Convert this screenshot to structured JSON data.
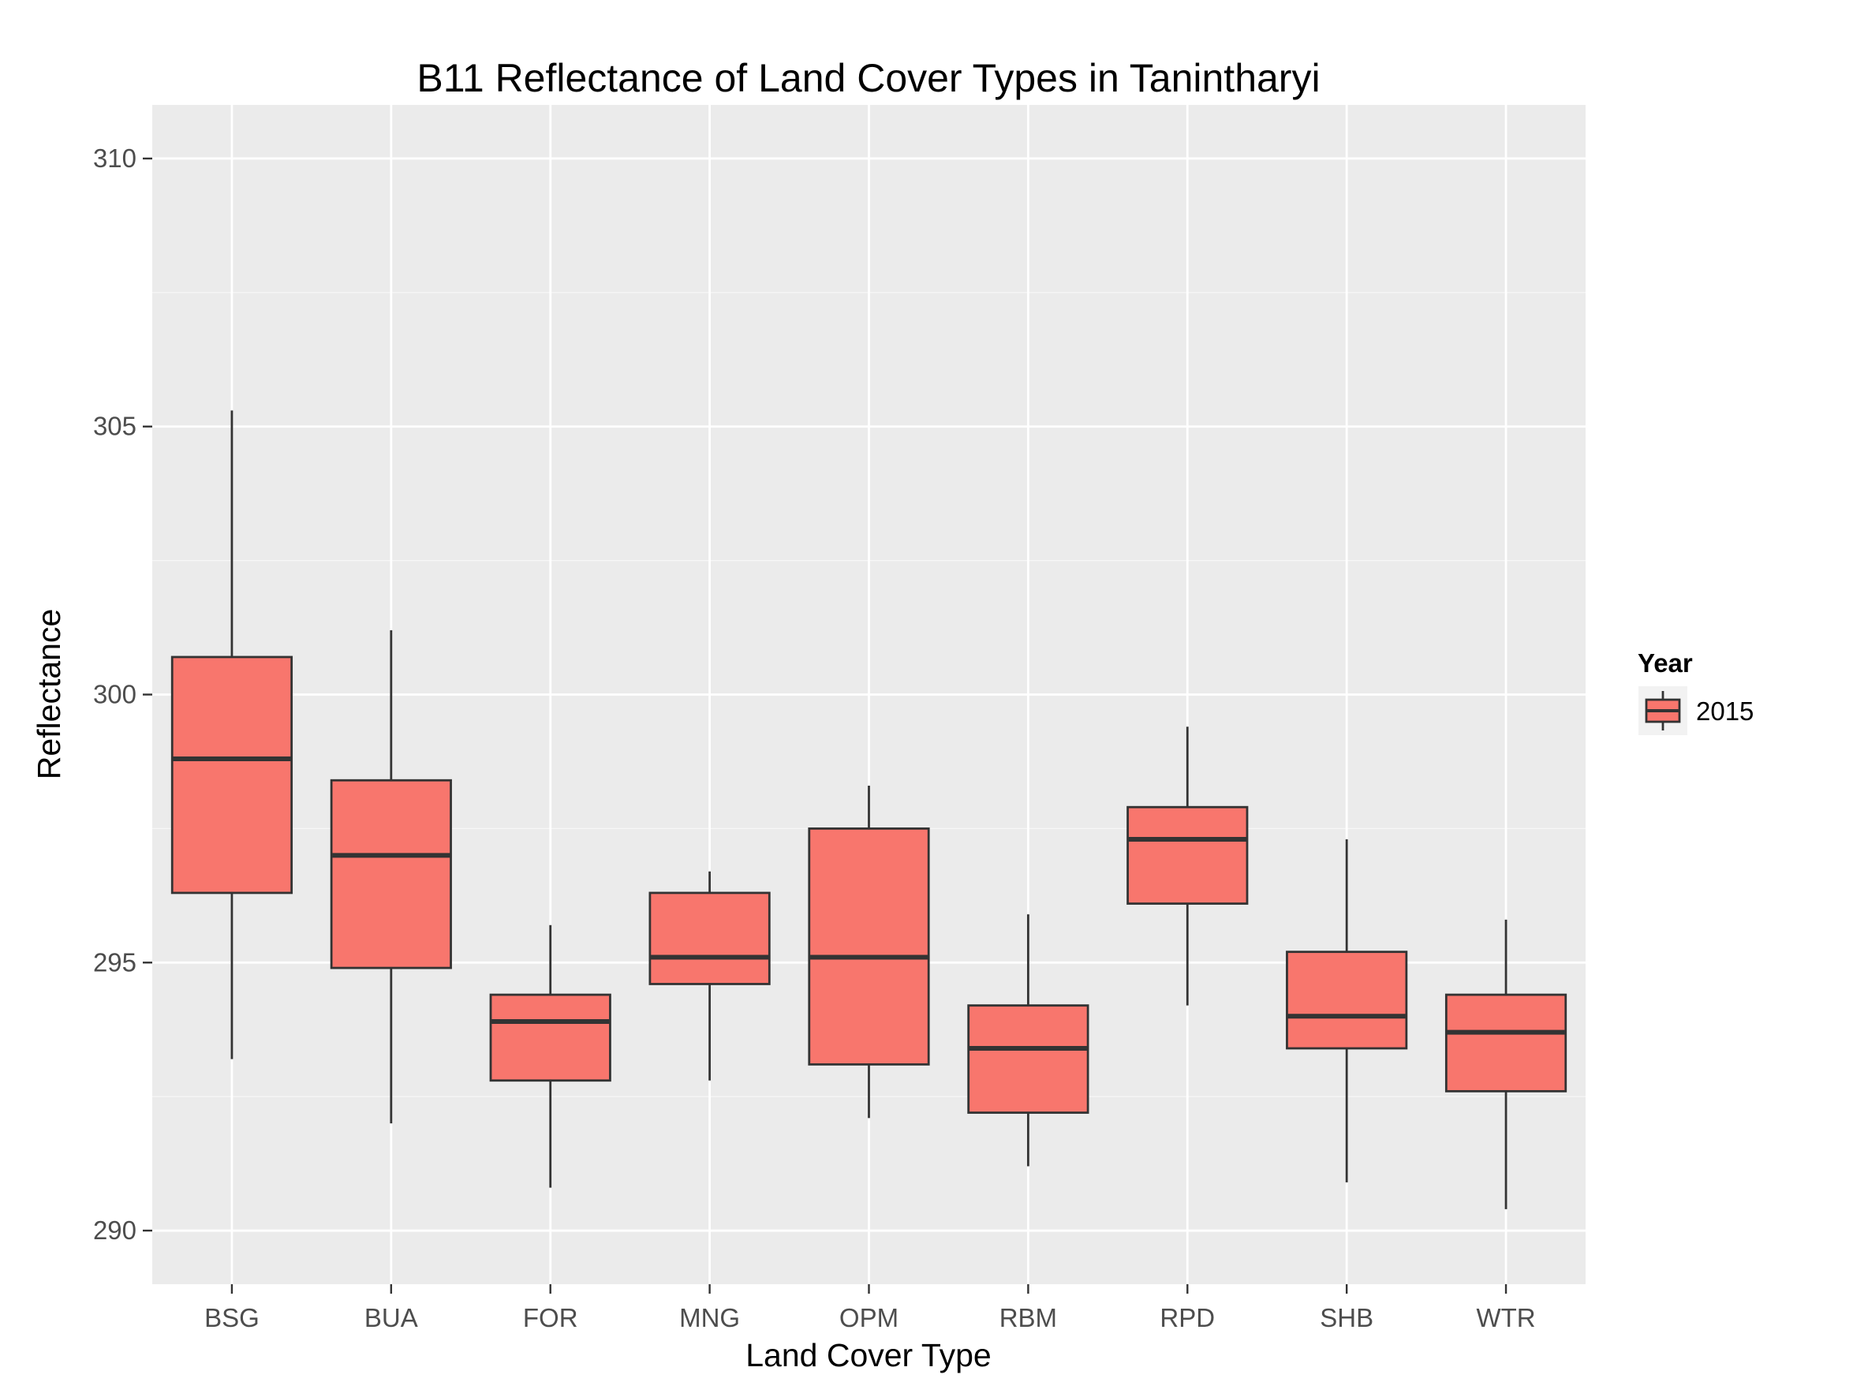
{
  "chart_data": {
    "type": "boxplot",
    "title": "B11 Reflectance of Land Cover Types in Tanintharyi",
    "xlabel": "Land Cover Type",
    "ylabel": "Reflectance",
    "ylim": [
      289.0,
      311.0
    ],
    "y_ticks": [
      290,
      295,
      300,
      305,
      310
    ],
    "grid": true,
    "legend": {
      "title": "Year",
      "position": "right",
      "entries": [
        "2015"
      ]
    },
    "colors": {
      "panel": "#ebebeb",
      "grid": "#ffffff",
      "box_fill": "#f8766d",
      "box_line": "#333333",
      "tick": "#333333",
      "tick_label": "#4d4d4d"
    },
    "categories": [
      "BSG",
      "BUA",
      "FOR",
      "MNG",
      "OPM",
      "RBM",
      "RPD",
      "SHB",
      "WTR"
    ],
    "series": [
      {
        "name": "2015",
        "boxes": [
          {
            "category": "BSG",
            "lower_whisker": 293.2,
            "q1": 296.3,
            "median": 298.8,
            "q3": 300.7,
            "upper_whisker": 305.3
          },
          {
            "category": "BUA",
            "lower_whisker": 292.0,
            "q1": 294.9,
            "median": 297.0,
            "q3": 298.4,
            "upper_whisker": 301.2
          },
          {
            "category": "FOR",
            "lower_whisker": 290.8,
            "q1": 292.8,
            "median": 293.9,
            "q3": 294.4,
            "upper_whisker": 295.7
          },
          {
            "category": "MNG",
            "lower_whisker": 292.8,
            "q1": 294.6,
            "median": 295.1,
            "q3": 296.3,
            "upper_whisker": 296.7
          },
          {
            "category": "OPM",
            "lower_whisker": 292.1,
            "q1": 293.1,
            "median": 295.1,
            "q3": 297.5,
            "upper_whisker": 298.3
          },
          {
            "category": "RBM",
            "lower_whisker": 291.2,
            "q1": 292.2,
            "median": 293.4,
            "q3": 294.2,
            "upper_whisker": 295.9
          },
          {
            "category": "RPD",
            "lower_whisker": 294.2,
            "q1": 296.1,
            "median": 297.3,
            "q3": 297.9,
            "upper_whisker": 299.4
          },
          {
            "category": "SHB",
            "lower_whisker": 290.9,
            "q1": 293.4,
            "median": 294.0,
            "q3": 295.2,
            "upper_whisker": 297.3
          },
          {
            "category": "WTR",
            "lower_whisker": 290.4,
            "q1": 292.6,
            "median": 293.7,
            "q3": 294.4,
            "upper_whisker": 295.8
          }
        ]
      }
    ]
  }
}
